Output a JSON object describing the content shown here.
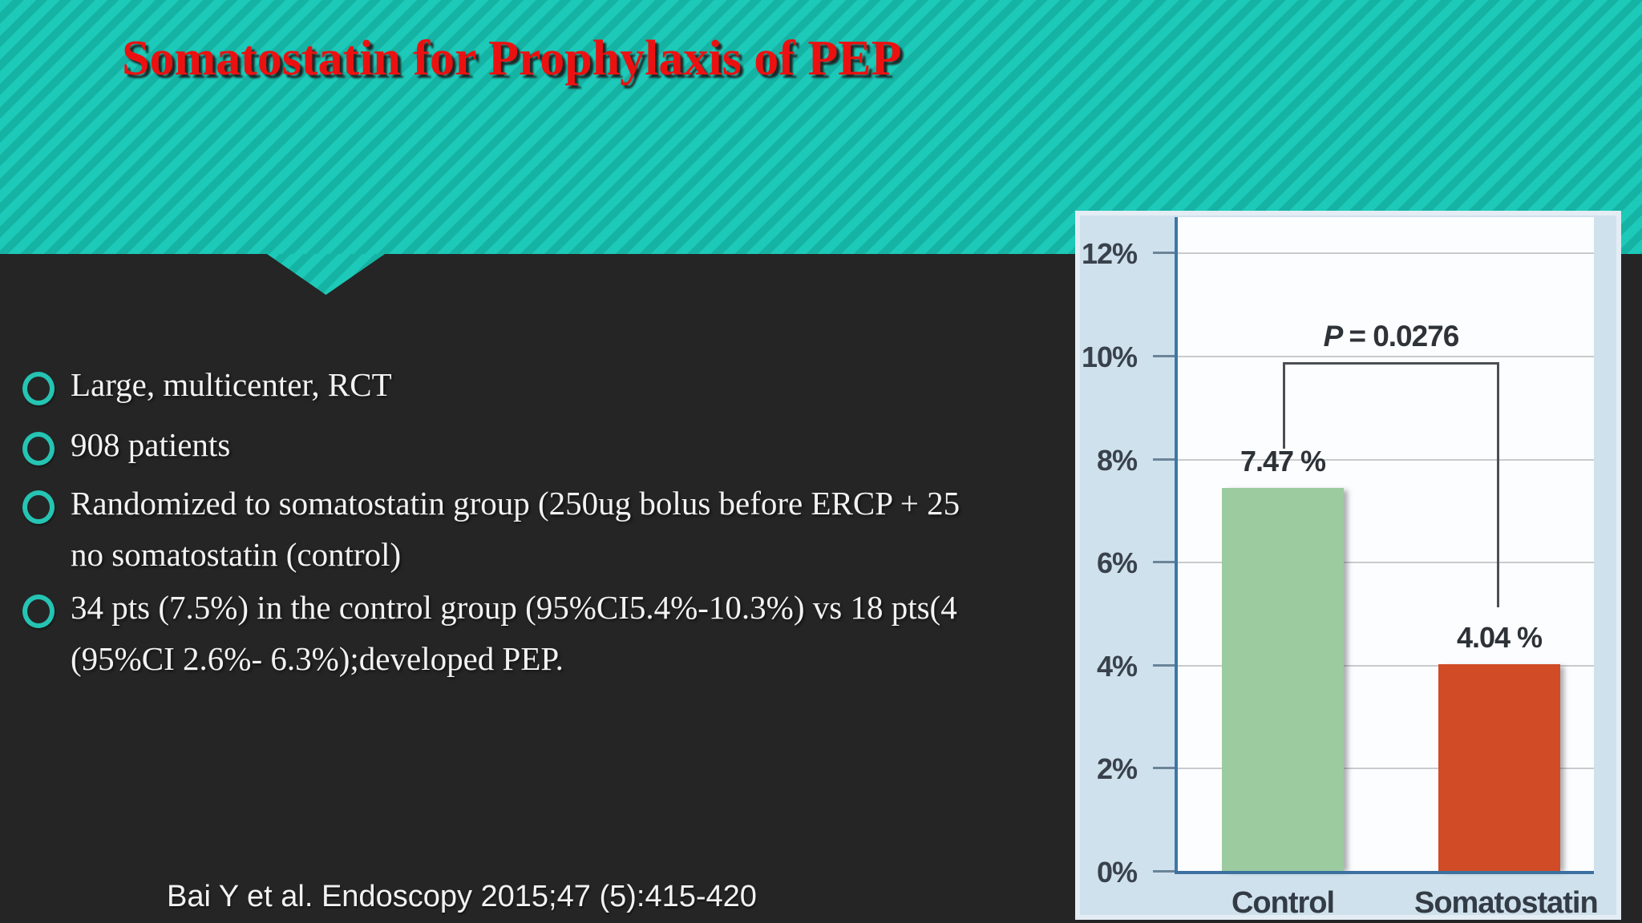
{
  "slide": {
    "title": "Somatostatin for Prophylaxis of PEP",
    "bullets": [
      {
        "lines": [
          "Large, multicenter, RCT"
        ]
      },
      {
        "lines": [
          "908 patients"
        ]
      },
      {
        "lines": [
          "Randomized to somatostatin group (250ug bolus before ERCP + 25",
          "no somatostatin (control)"
        ]
      },
      {
        "lines": [
          "34 pts (7.5%) in the control group (95%CI5.4%-10.3%) vs 18 pts(4",
          "(95%CI 2.6%- 6.3%);developed PEP."
        ]
      }
    ],
    "citation": "Bai Y et al. Endoscopy 2015;47 (5):415-420",
    "icons": [
      "bullet-ring-icon"
    ]
  },
  "colors": {
    "band_teal_light": "#1dc9b8",
    "band_teal_dark": "#15b3a4",
    "title_red": "#ec1111",
    "body_background": "#252525",
    "bullet_ring_teal": "#25c4b3",
    "chart_panel_blue": "#cfe1ed",
    "chart_axis_blue": "#4077a2",
    "bar_green": "#9ccb9f",
    "bar_orange": "#d04b26"
  },
  "chart_data": {
    "type": "bar",
    "title": "",
    "categories": [
      "Control",
      "Somatostatin"
    ],
    "values": [
      7.47,
      4.04
    ],
    "bar_labels": [
      "7.47 %",
      "4.04 %"
    ],
    "bar_colors": [
      "#9ccb9f",
      "#d04b26"
    ],
    "annotation": {
      "symbol": "P",
      "text": "= 0.0276"
    },
    "yticks": [
      "0%",
      "2%",
      "4%",
      "6%",
      "8%",
      "10%",
      "12%"
    ],
    "ytick_values": [
      0,
      2,
      4,
      6,
      8,
      10,
      12
    ],
    "ylim": [
      0,
      12.7
    ],
    "xlabel": "",
    "ylabel": "",
    "grid": true,
    "legend_position": "none"
  }
}
